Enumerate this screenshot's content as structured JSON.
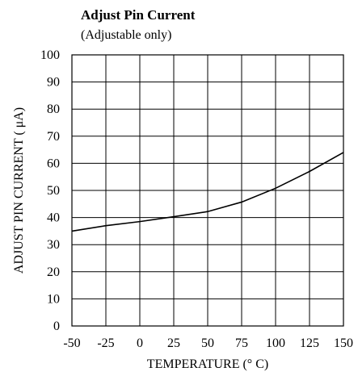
{
  "chart_data": {
    "type": "line",
    "title": "Adjust Pin Current",
    "subtitle": "(Adjustable only)",
    "xlabel": "TEMPERATURE (° C)",
    "ylabel": "ADJUST PIN CURRENT ( μA)",
    "xlim": [
      -50,
      150
    ],
    "ylim": [
      0,
      100
    ],
    "x_ticks": [
      -50,
      -25,
      0,
      25,
      50,
      75,
      100,
      125,
      150
    ],
    "y_ticks": [
      0,
      10,
      20,
      30,
      40,
      50,
      60,
      70,
      80,
      90,
      100
    ],
    "x_tick_labels": [
      "-50",
      "-25",
      "0",
      "25",
      "50",
      "75",
      "100",
      "125",
      "150"
    ],
    "y_tick_labels": [
      "0",
      "10",
      "20",
      "30",
      "40",
      "50",
      "60",
      "70",
      "80",
      "90",
      "100"
    ],
    "grid": true,
    "line_color": "#000000",
    "series": [
      {
        "x": [
          -50,
          -25,
          0,
          25,
          50,
          75,
          100,
          125,
          150
        ],
        "y": [
          35,
          37,
          38.5,
          40.3,
          42.2,
          45.7,
          50.8,
          57,
          64
        ]
      }
    ]
  }
}
